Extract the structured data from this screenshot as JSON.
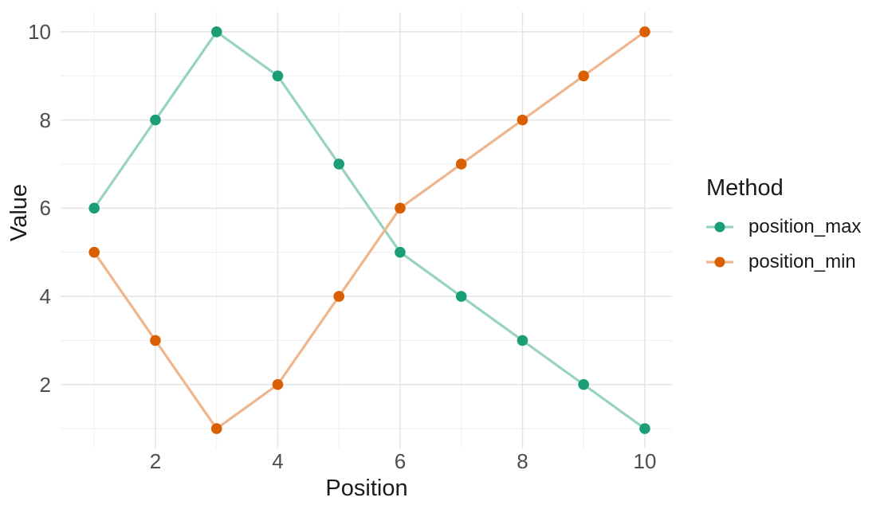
{
  "chart_data": {
    "type": "line",
    "title": "",
    "xlabel": "Position",
    "ylabel": "Value",
    "legend_title": "Method",
    "legend_position": "right",
    "grid": true,
    "x": [
      1,
      2,
      3,
      4,
      5,
      6,
      7,
      8,
      9,
      10
    ],
    "series": [
      {
        "name": "position_max",
        "point_color": "#1B9E77",
        "line_color": "#98D3C1",
        "values": [
          6,
          8,
          10,
          9,
          7,
          5,
          4,
          3,
          2,
          1
        ]
      },
      {
        "name": "position_min",
        "point_color": "#D95F02",
        "line_color": "#EFB68E",
        "values": [
          5,
          3,
          1,
          2,
          4,
          6,
          7,
          8,
          9,
          10
        ]
      }
    ],
    "x_ticks": [
      2,
      4,
      6,
      8,
      10
    ],
    "x_minor_ticks": [
      1,
      3,
      5,
      7,
      9
    ],
    "y_ticks": [
      2,
      4,
      6,
      8,
      10
    ],
    "y_minor_ticks": [
      1,
      3,
      5,
      7,
      9
    ],
    "xlim": [
      0.45,
      10.45
    ],
    "ylim": [
      0.55,
      10.45
    ]
  },
  "style": {
    "background_color": "#FFFFFF",
    "grid_major_color": "#E4E4E4",
    "grid_minor_color": "#EFEFEF",
    "tick_label_color": "#4D4D4D",
    "text_color": "#1A1A1A"
  }
}
